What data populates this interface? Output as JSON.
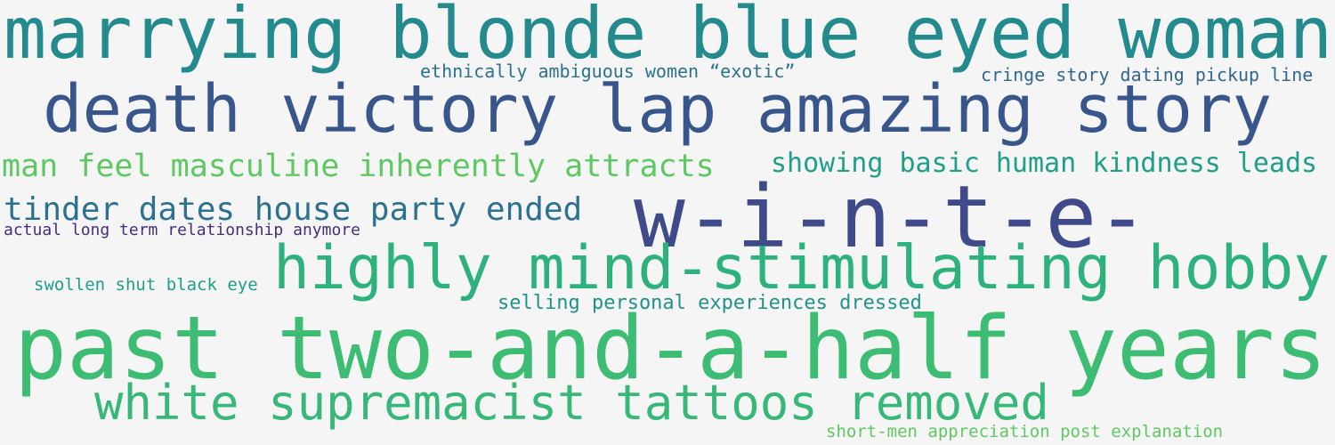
{
  "words": [
    {
      "text": "marrying blonde blue eyed woman",
      "color": "#238a8d"
    },
    {
      "text": "death victory lap amazing story",
      "color": "#39568c"
    },
    {
      "text": "man feel masculine inherently attracts",
      "color": "#5ec962"
    },
    {
      "text": "showing basic human kindness leads",
      "color": "#1f9e89"
    },
    {
      "text": "tinder dates house party ended",
      "color": "#2c728e"
    },
    {
      "text": "w-i-n-t-e-",
      "color": "#3e4a89"
    },
    {
      "text": "actual long term relationship anymore",
      "color": "#472d7b"
    },
    {
      "text": "highly mind-stimulating hobby",
      "color": "#2db27d"
    },
    {
      "text": "swollen shut black eye",
      "color": "#1f9e89"
    },
    {
      "text": "selling personal experiences dressed",
      "color": "#20928c"
    },
    {
      "text": "past two-and-a-half years",
      "color": "#3dbc74"
    },
    {
      "text": "white supremacist tattoos removed",
      "color": "#37b878"
    },
    {
      "text": "short-men appreciation post explanation",
      "color": "#5ec962"
    },
    {
      "text": "ethnically ambiguous women “exotic”",
      "color": "#2c728e"
    },
    {
      "text": "cringe story dating pickup line",
      "color": "#31668e"
    }
  ]
}
